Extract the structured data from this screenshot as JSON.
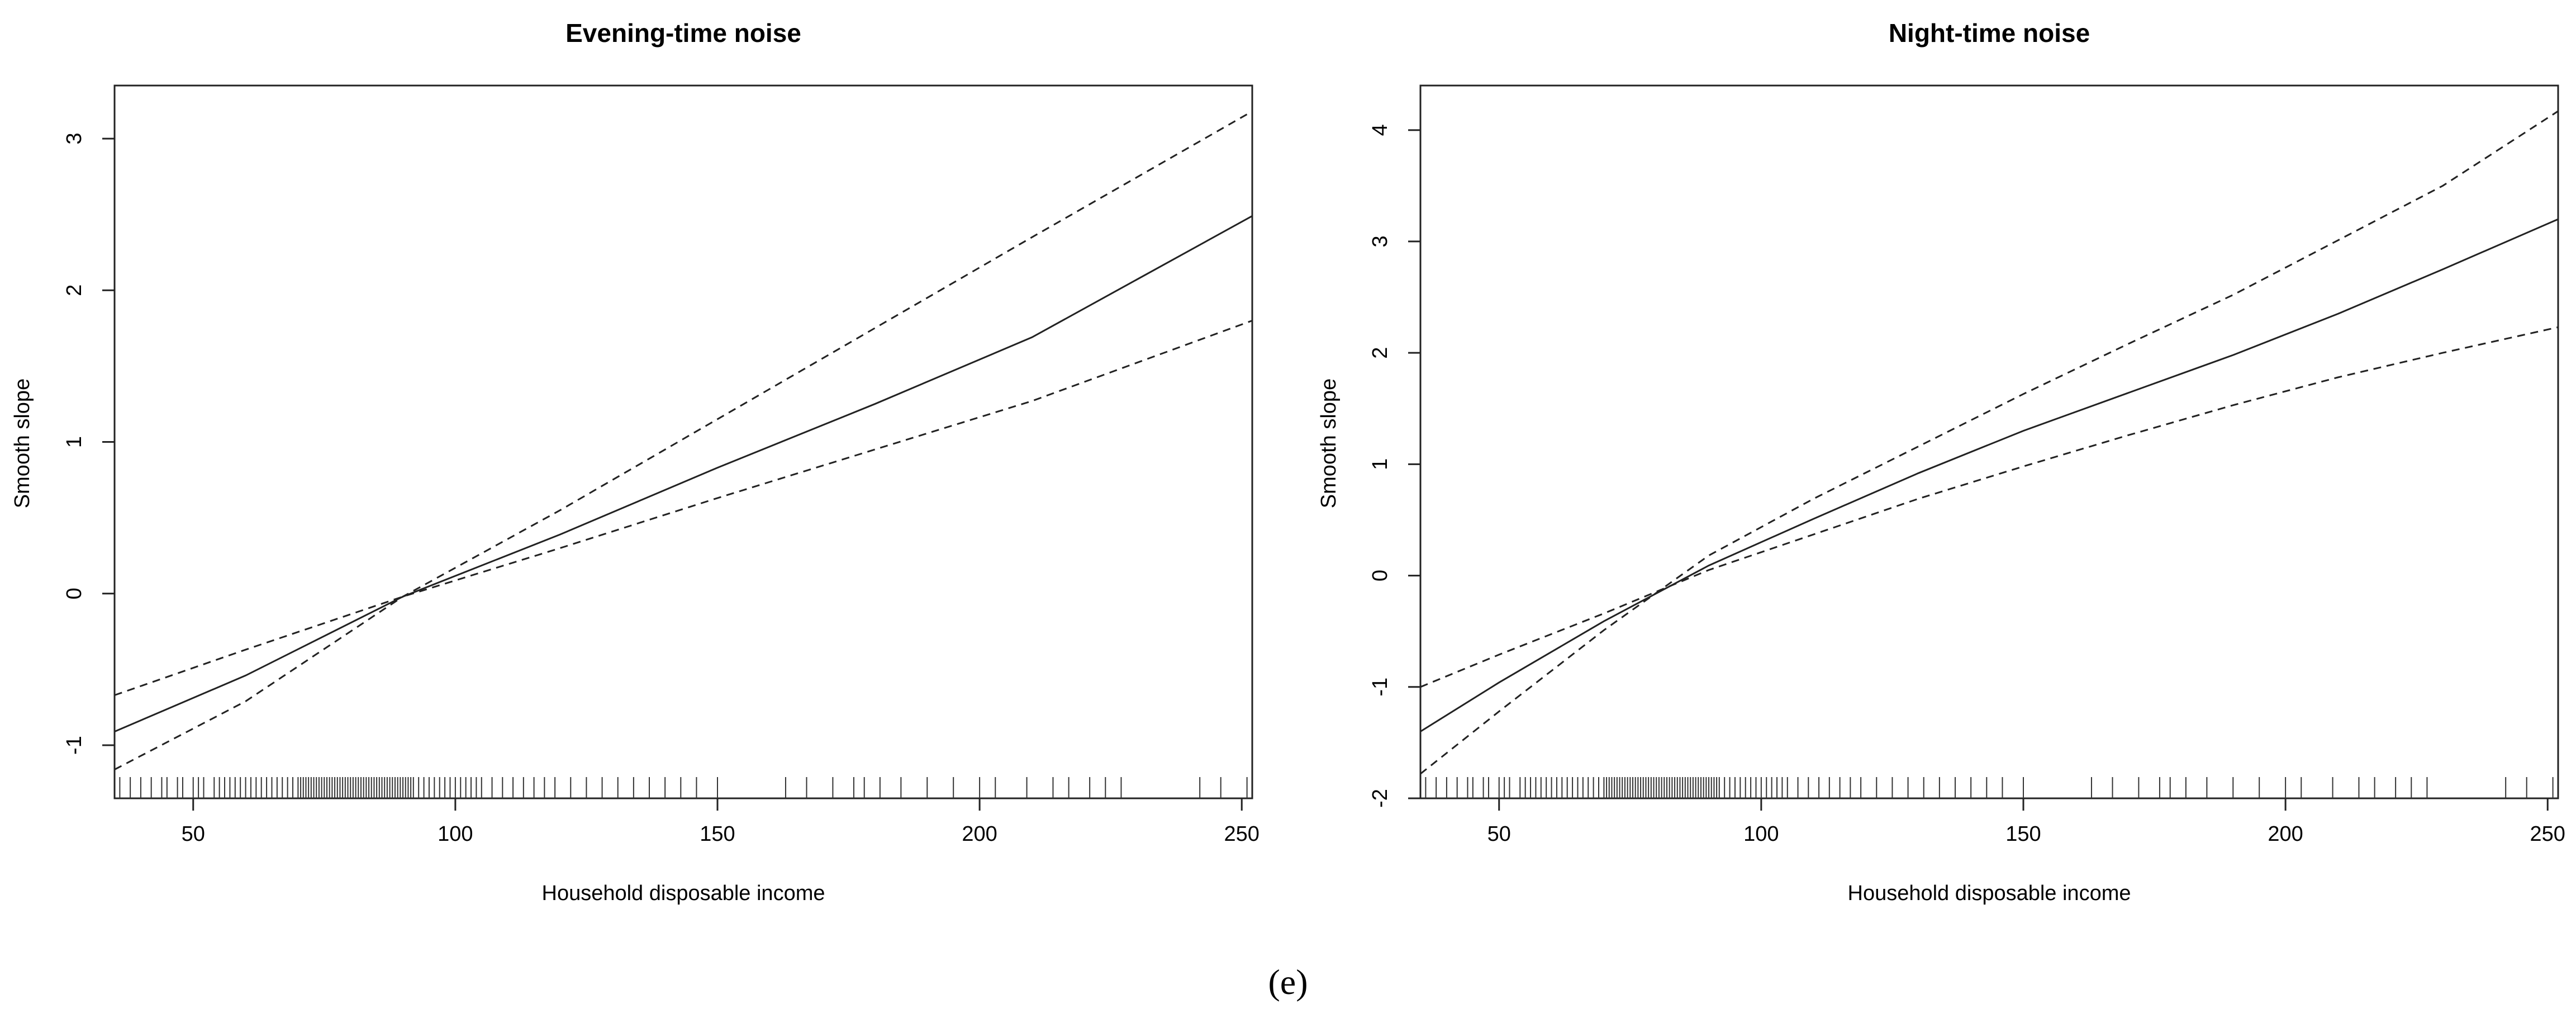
{
  "caption": "(e)",
  "chart_data": [
    {
      "type": "line",
      "title": "Evening-time noise",
      "xlabel": "Household disposable income",
      "ylabel": "Smooth slope",
      "xlim": [
        35,
        252
      ],
      "ylim": [
        -1.35,
        3.35
      ],
      "xticks": [
        "50",
        "100",
        "150",
        "200",
        "250"
      ],
      "yticks": [
        "-1",
        "0",
        "1",
        "2",
        "3"
      ],
      "grid": false,
      "series": [
        {
          "style": "solid",
          "x": [
            35,
            60,
            90,
            120,
            150,
            180,
            210,
            252
          ],
          "y": [
            -0.91,
            -0.54,
            -0.02,
            0.39,
            0.83,
            1.25,
            1.69,
            2.49
          ]
        },
        {
          "style": "dashed",
          "x": [
            35,
            60,
            90,
            120,
            150,
            180,
            210,
            252
          ],
          "y": [
            -0.67,
            -0.37,
            -0.02,
            0.3,
            0.63,
            0.95,
            1.27,
            1.8
          ]
        },
        {
          "style": "dashed",
          "x": [
            35,
            60,
            90,
            120,
            150,
            180,
            210,
            252
          ],
          "y": [
            -1.16,
            -0.71,
            -0.02,
            0.55,
            1.15,
            1.75,
            2.35,
            3.18
          ]
        }
      ],
      "rug": [
        36,
        38,
        40,
        42,
        44,
        45,
        47,
        48,
        50,
        51,
        52,
        54,
        55,
        56,
        57,
        58,
        59,
        60,
        61,
        62,
        63,
        64,
        65,
        66,
        67,
        68,
        69,
        70,
        70.5,
        71,
        71.5,
        72,
        72.5,
        73,
        73.5,
        74,
        74.5,
        75,
        75.5,
        76,
        76.5,
        77,
        77.5,
        78,
        78.5,
        79,
        79.5,
        80,
        80.5,
        81,
        81.5,
        82,
        82.5,
        83,
        83.5,
        84,
        84.5,
        85,
        85.5,
        86,
        86.5,
        87,
        87.5,
        88,
        88.5,
        89,
        89.5,
        90,
        90.5,
        91,
        91.5,
        92,
        93,
        94,
        95,
        96,
        97,
        98,
        99,
        100,
        101,
        102,
        103,
        104,
        105,
        107,
        109,
        111,
        113,
        115,
        117,
        119,
        122,
        125,
        128,
        131,
        134,
        137,
        140,
        143,
        146,
        150,
        163,
        167,
        172,
        176,
        178,
        181,
        185,
        190,
        195,
        200,
        203,
        209,
        214,
        217,
        221,
        224,
        227,
        242,
        246,
        251
      ]
    },
    {
      "type": "line",
      "title": "Night-time noise",
      "xlabel": "Household disposable income",
      "ylabel": "Smooth slope",
      "xlim": [
        35,
        252
      ],
      "ylim": [
        -2.0,
        4.4
      ],
      "xticks": [
        "50",
        "100",
        "150",
        "200",
        "250"
      ],
      "yticks": [
        "-2",
        "-1",
        "0",
        "1",
        "2",
        "3",
        "4"
      ],
      "grid": false,
      "series": [
        {
          "style": "solid",
          "x": [
            35,
            50,
            70,
            90,
            110,
            130,
            150,
            170,
            190,
            210,
            230,
            252
          ],
          "y": [
            -1.4,
            -0.96,
            -0.41,
            0.09,
            0.51,
            0.92,
            1.3,
            1.64,
            1.98,
            2.35,
            2.75,
            3.2
          ]
        },
        {
          "style": "dashed",
          "x": [
            35,
            50,
            70,
            90,
            110,
            130,
            150,
            170,
            190,
            210,
            230,
            252
          ],
          "y": [
            -1.0,
            -0.71,
            -0.34,
            0.05,
            0.37,
            0.69,
            0.98,
            1.26,
            1.53,
            1.78,
            2.0,
            2.23
          ]
        },
        {
          "style": "dashed",
          "x": [
            35,
            50,
            70,
            90,
            110,
            130,
            150,
            170,
            190,
            210,
            230,
            252
          ],
          "y": [
            -1.78,
            -1.22,
            -0.49,
            0.18,
            0.69,
            1.16,
            1.63,
            2.08,
            2.52,
            3.01,
            3.5,
            4.17
          ]
        }
      ],
      "rug": [
        36,
        38,
        40,
        42,
        44,
        45,
        47,
        48,
        50,
        51,
        52,
        54,
        55,
        56,
        57,
        58,
        59,
        60,
        61,
        62,
        63,
        64,
        65,
        66,
        67,
        68,
        69,
        70,
        70.5,
        71,
        71.5,
        72,
        72.5,
        73,
        73.5,
        74,
        74.5,
        75,
        75.5,
        76,
        76.5,
        77,
        77.5,
        78,
        78.5,
        79,
        79.5,
        80,
        80.5,
        81,
        81.5,
        82,
        82.5,
        83,
        83.5,
        84,
        84.5,
        85,
        85.5,
        86,
        86.5,
        87,
        87.5,
        88,
        88.5,
        89,
        89.5,
        90,
        90.5,
        91,
        91.5,
        92,
        93,
        94,
        95,
        96,
        97,
        98,
        99,
        100,
        101,
        102,
        103,
        104,
        105,
        107,
        109,
        111,
        113,
        115,
        117,
        119,
        122,
        125,
        128,
        131,
        134,
        137,
        140,
        143,
        146,
        150,
        163,
        167,
        172,
        176,
        178,
        181,
        185,
        190,
        195,
        200,
        203,
        209,
        214,
        217,
        221,
        224,
        227,
        242,
        246,
        251
      ]
    }
  ]
}
